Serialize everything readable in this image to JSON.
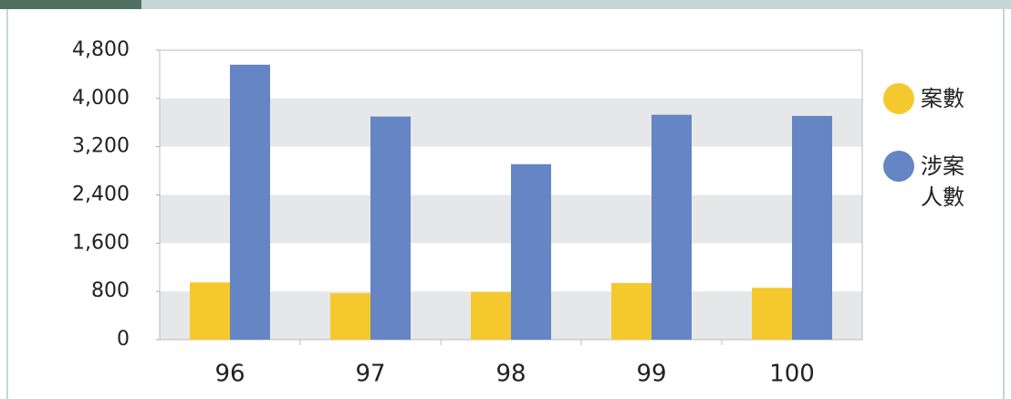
{
  "chart_data": {
    "type": "bar",
    "categories": [
      "96",
      "97",
      "98",
      "99",
      "100"
    ],
    "series": [
      {
        "name": "案數",
        "color": "#f5c92e",
        "values": [
          950,
          770,
          790,
          940,
          860
        ]
      },
      {
        "name": "涉案人數",
        "color": "#6585c4",
        "values": [
          4560,
          3700,
          2910,
          3730,
          3710
        ]
      }
    ],
    "ylim": [
      0,
      4800
    ],
    "yticks": [
      0,
      800,
      {
        "value": 1600,
        "label": "1,600"
      },
      {
        "value": 2400,
        "label": "2,400"
      },
      {
        "value": 3200,
        "label": "3,200"
      },
      {
        "value": 4000,
        "label": "4,000"
      },
      {
        "value": 4800,
        "label": "4,800"
      }
    ],
    "grid": "banded",
    "band_color": "#e6e7e8",
    "legend": "right"
  }
}
